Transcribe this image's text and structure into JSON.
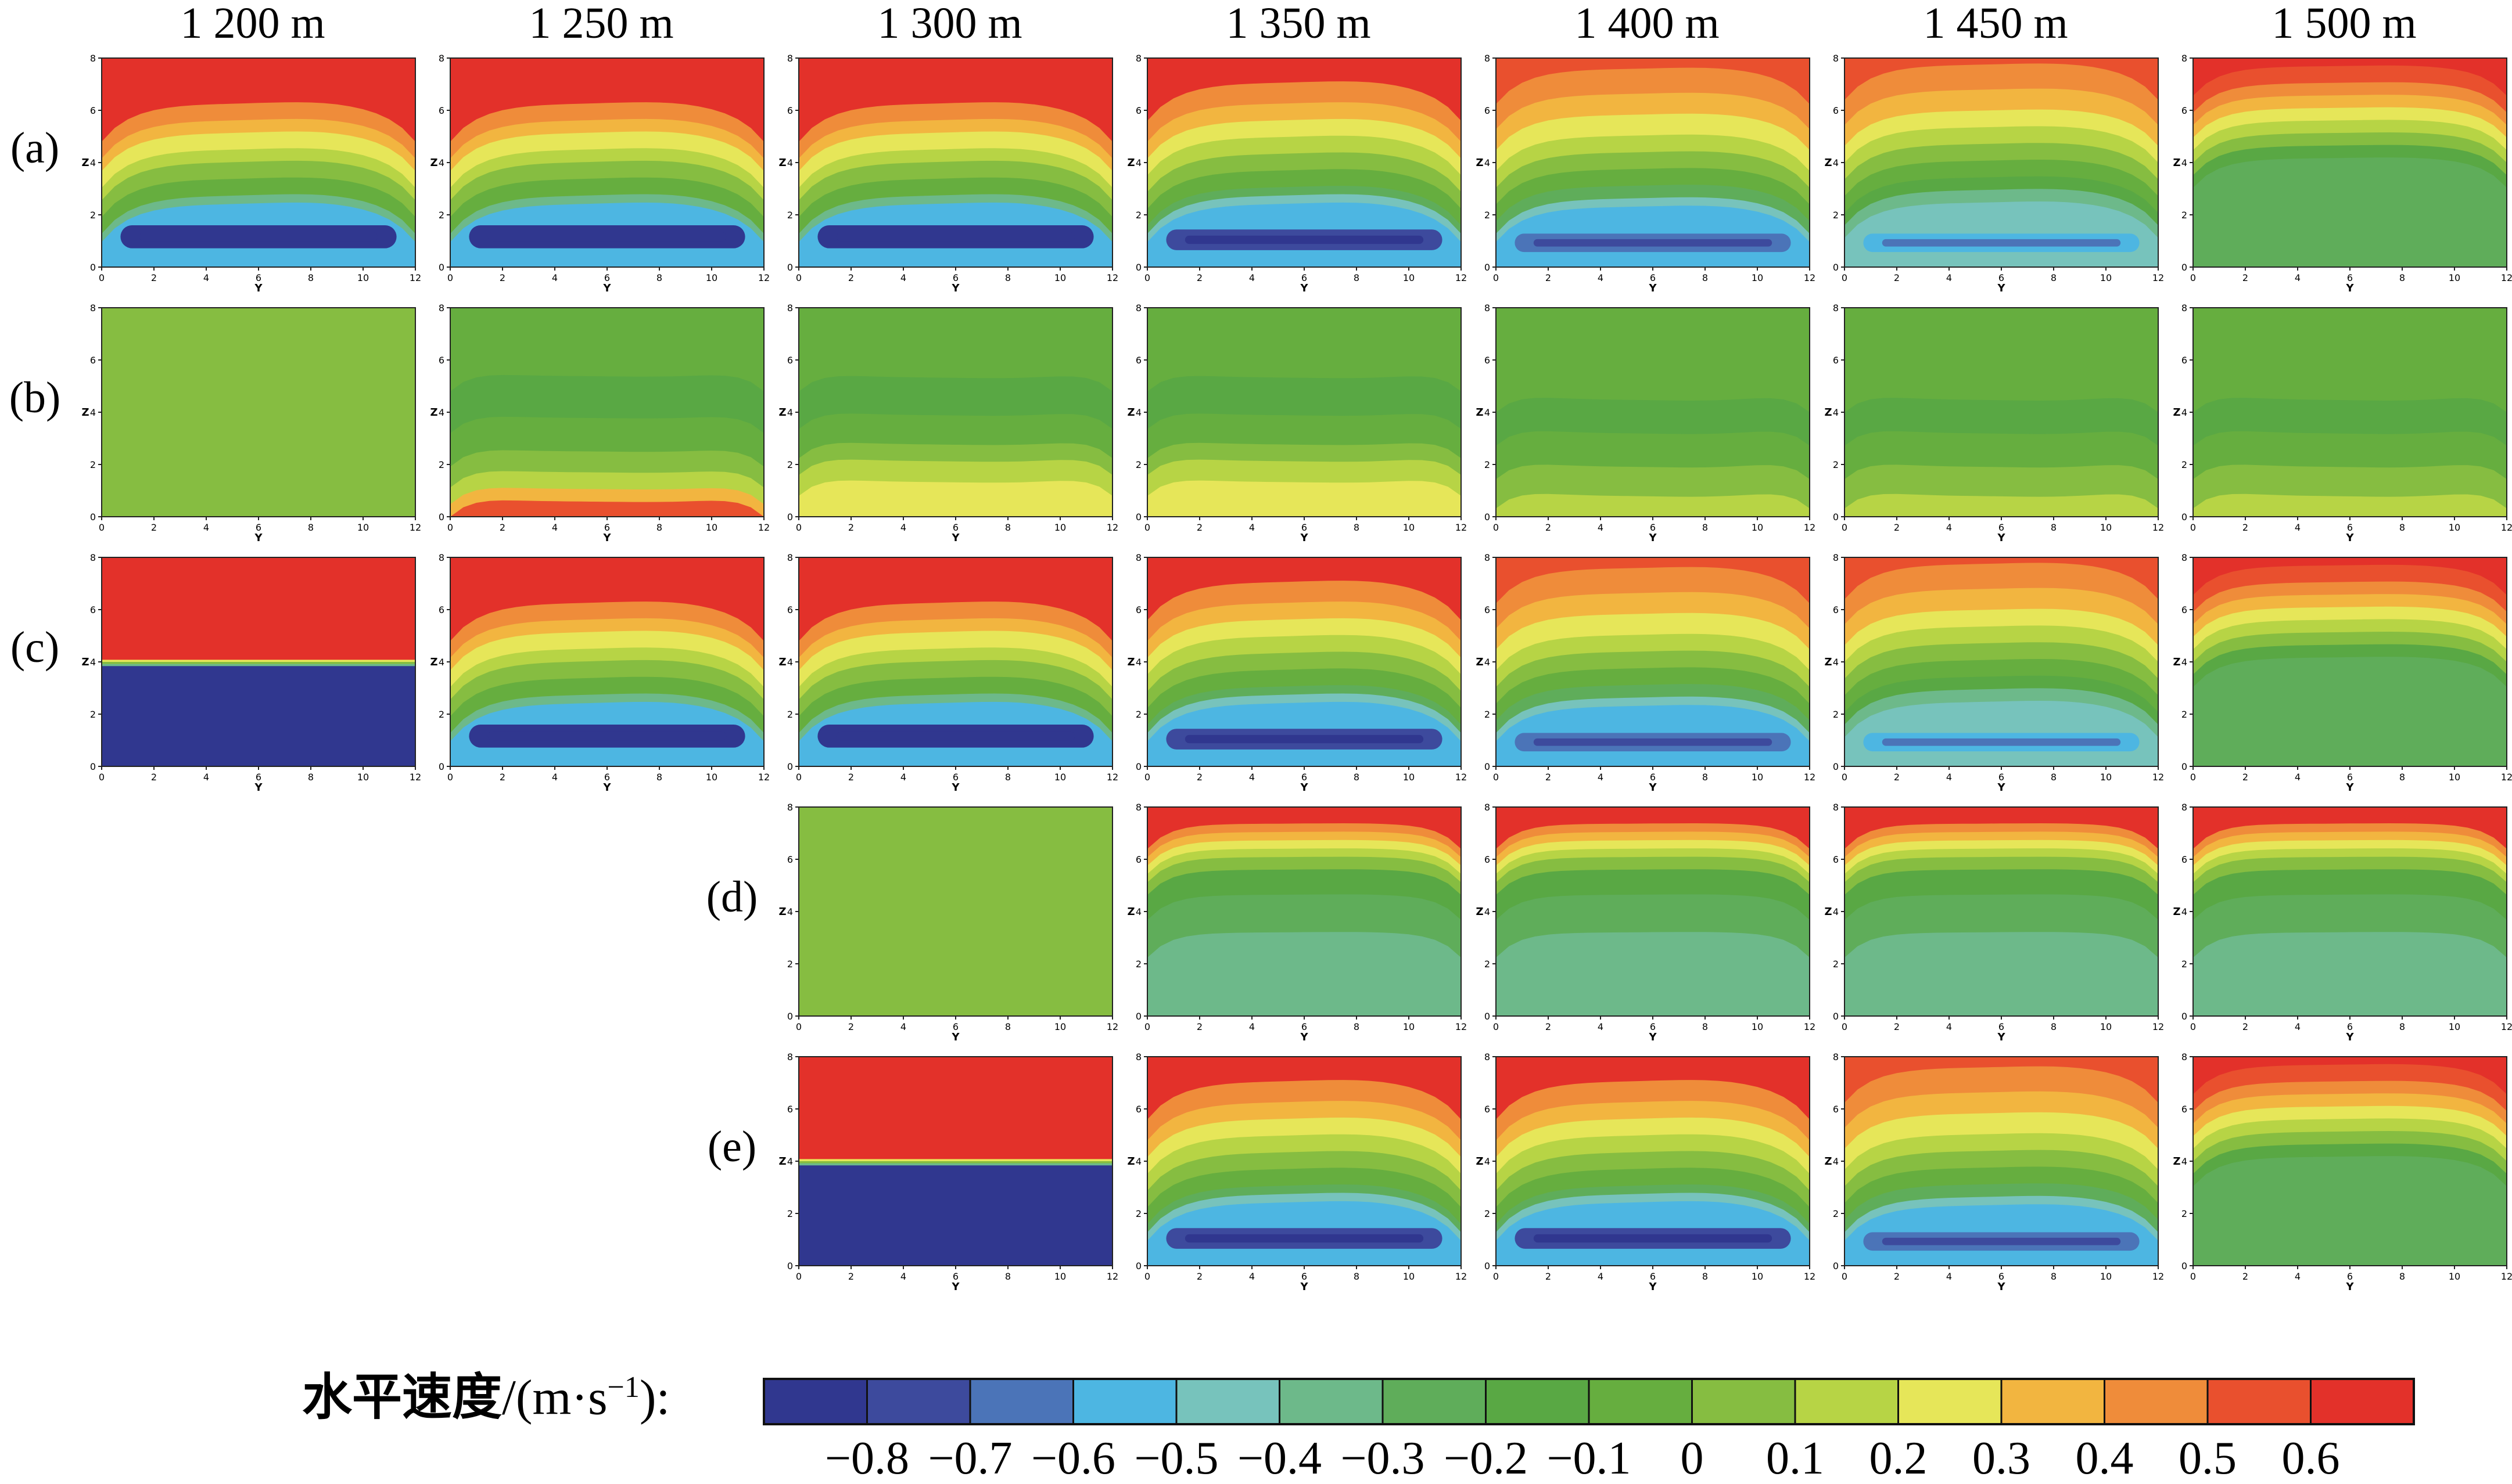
{
  "figure": {
    "columns": [
      "1 200 m",
      "1 250 m",
      "1 300 m",
      "1 350 m",
      "1 400 m",
      "1 450 m",
      "1 500 m"
    ],
    "rows": [
      {
        "label": "(a)",
        "panels": [
          "shear",
          "shear",
          "shear",
          "core-dark",
          "core-mid",
          "core-light",
          "weak-top"
        ]
      },
      {
        "label": "(b)",
        "panels": [
          "uniform-green",
          "bottom-orange",
          "bottom-yellow",
          "bottom-yellow",
          "mid-green",
          "mid-green",
          "mid-green"
        ]
      },
      {
        "label": "(c)",
        "panels": [
          "two-layer",
          "shear",
          "shear",
          "core-dark",
          "core-mid",
          "core-light",
          "weak-top"
        ]
      },
      {
        "label": "(d)",
        "panels": [
          null,
          null,
          "uniform-green",
          "top-layer",
          "top-layer",
          "top-layer",
          "top-layer"
        ]
      },
      {
        "label": "(e)",
        "panels": [
          null,
          null,
          "two-layer",
          "core-dark",
          "core-dark",
          "core-mid",
          "weak-top"
        ]
      }
    ],
    "panel_axes": {
      "x_label": "Y",
      "z_label": "Z",
      "x_ticks": [
        "0",
        "2",
        "4",
        "6",
        "8",
        "10",
        "12"
      ],
      "z_ticks": [
        "0",
        "2",
        "4",
        "6",
        "8"
      ],
      "x_range": [
        0,
        12
      ],
      "z_range": [
        0,
        8
      ]
    }
  },
  "colorbar": {
    "title_cn": "水平速度",
    "title_unit": "/(m·s",
    "title_exp": "−1",
    "title_end": "):",
    "tick_labels": [
      "−0.8",
      "−0.7",
      "−0.6",
      "−0.5",
      "−0.4",
      "−0.3",
      "−0.2",
      "−0.1",
      "0",
      "0.1",
      "0.2",
      "0.3",
      "0.4",
      "0.5",
      "0.6"
    ],
    "levels": [
      -0.8,
      -0.7,
      -0.6,
      -0.5,
      -0.4,
      -0.3,
      -0.2,
      -0.1,
      0,
      0.1,
      0.2,
      0.3,
      0.4,
      0.5,
      0.6
    ],
    "colors": [
      "#30378f",
      "#3d4a9d",
      "#4b74b8",
      "#4db6e2",
      "#77c3bc",
      "#6db98a",
      "#5fad5a",
      "#59a844",
      "#66ae3f",
      "#86bd41",
      "#b7d445",
      "#e6e659",
      "#f2b540",
      "#ef8c3a",
      "#e9502e",
      "#e3312a"
    ]
  }
}
